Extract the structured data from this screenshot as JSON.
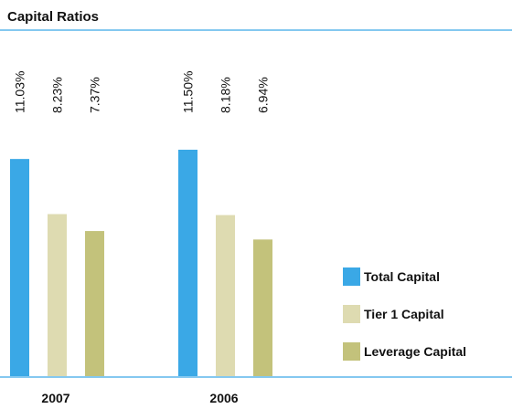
{
  "chart_data": {
    "type": "bar",
    "title": "Capital Ratios",
    "categories": [
      "2007",
      "2006"
    ],
    "series": [
      {
        "name": "Total Capital",
        "color": "#3aa8e6",
        "values": [
          11.03,
          11.5
        ],
        "value_labels": [
          "11.03%",
          "11.50%"
        ]
      },
      {
        "name": "Tier 1 Capital",
        "color": "#dedbb1",
        "values": [
          8.23,
          8.18
        ],
        "value_labels": [
          "8.23%",
          "8.18%"
        ]
      },
      {
        "name": "Leverage Capital",
        "color": "#c3c27b",
        "values": [
          7.37,
          6.94
        ],
        "value_labels": [
          "7.37%",
          "6.94%"
        ]
      }
    ],
    "legend": "right"
  }
}
